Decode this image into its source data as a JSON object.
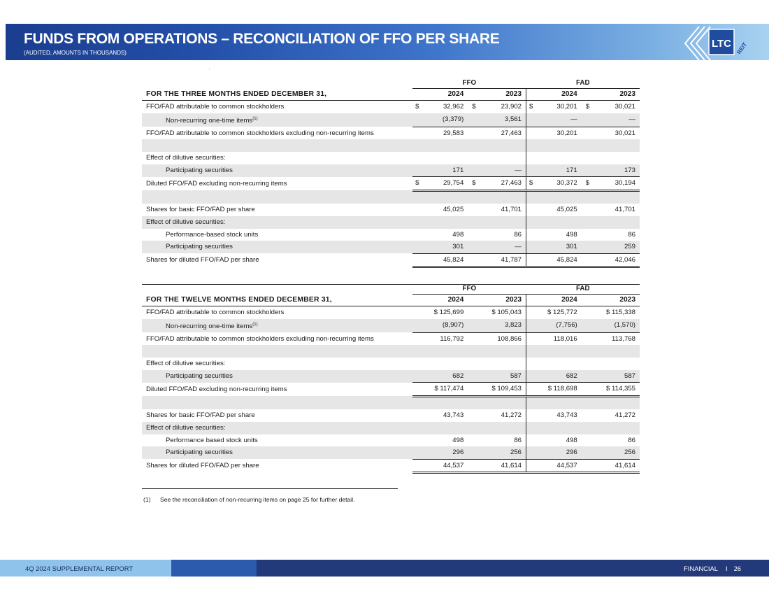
{
  "header": {
    "title": "FUNDS FROM OPERATIONS – RECONCILIATION OF FFO PER SHARE",
    "subtitle": "(AUDITED, AMOUNTS IN THOUSANDS)",
    "logo_text": "LTC",
    "logo_subtext": "REIT"
  },
  "three_months": {
    "group_ffo": "FFO",
    "group_fad": "FAD",
    "period_label": "FOR THE THREE MONTHS ENDED DECEMBER 31,",
    "years": [
      "2024",
      "2023",
      "2024",
      "2023"
    ],
    "rows": [
      {
        "label": "FFO/FAD attributable to common stockholders",
        "cur": "$",
        "v": [
          "32,962",
          "23,902",
          "30,201",
          "30,021"
        ]
      },
      {
        "label": "Non-recurring one-time items",
        "sup": "(1)",
        "v": [
          "(3,379)",
          "3,561",
          "—",
          "—"
        ]
      },
      {
        "label": "FFO/FAD attributable to common stockholders excluding non-recurring items",
        "v": [
          "29,583",
          "27,463",
          "30,201",
          "30,021"
        ]
      },
      {
        "label": "Effect of dilutive securities:"
      },
      {
        "label": "Participating securities",
        "v": [
          "171",
          "—",
          "171",
          "173"
        ]
      },
      {
        "label": "Diluted FFO/FAD excluding non-recurring items",
        "cur": "$",
        "v": [
          "29,754",
          "27,463",
          "30,372",
          "30,194"
        ]
      },
      {
        "label": "Shares for basic FFO/FAD per share",
        "v": [
          "45,025",
          "41,701",
          "45,025",
          "41,701"
        ]
      },
      {
        "label": "Effect of dilutive securities:"
      },
      {
        "label": "Performance-based stock units",
        "v": [
          "498",
          "86",
          "498",
          "86"
        ]
      },
      {
        "label": "Participating securities",
        "v": [
          "301",
          "—",
          "301",
          "259"
        ]
      },
      {
        "label": "Shares for diluted FFO/FAD per share",
        "v": [
          "45,824",
          "41,787",
          "45,824",
          "42,046"
        ]
      }
    ]
  },
  "twelve_months": {
    "group_ffo": "FFO",
    "group_fad": "FAD",
    "period_label": "FOR THE TWELVE MONTHS ENDED DECEMBER 31,",
    "years": [
      "2024",
      "2023",
      "2024",
      "2023"
    ],
    "rows": [
      {
        "label": "FFO/FAD attributable to common stockholders",
        "v": [
          "$ 125,699",
          "$ 105,043",
          "$ 125,772",
          "$ 115,338"
        ]
      },
      {
        "label": "Non-recurring one-time items",
        "sup": "(1)",
        "v": [
          "(8,907)",
          "3,823",
          "(7,756)",
          "(1,570)"
        ]
      },
      {
        "label": "FFO/FAD attributable to common stockholders excluding non-recurring items",
        "v": [
          "116,792",
          "108,866",
          "118,016",
          "113,768"
        ]
      },
      {
        "label": "Effect of dilutive securities:"
      },
      {
        "label": "Participating securities",
        "v": [
          "682",
          "587",
          "682",
          "587"
        ]
      },
      {
        "label": "Diluted FFO/FAD excluding non-recurring items",
        "v": [
          "$ 117,474",
          "$ 109,453",
          "$ 118,698",
          "$ 114,355"
        ]
      },
      {
        "label": "Shares for basic FFO/FAD per share",
        "v": [
          "43,743",
          "41,272",
          "43,743",
          "41,272"
        ]
      },
      {
        "label": "Effect of dilutive securities:"
      },
      {
        "label": "Performance based stock units",
        "v": [
          "498",
          "86",
          "498",
          "86"
        ]
      },
      {
        "label": "Participating securities",
        "v": [
          "296",
          "256",
          "296",
          "256"
        ]
      },
      {
        "label": "Shares for diluted FFO/FAD per share",
        "v": [
          "44,537",
          "41,614",
          "44,537",
          "41,614"
        ]
      }
    ]
  },
  "footnote": {
    "number": "(1)",
    "text": "See the reconciliation of non-recurring items on page 25 for further detail."
  },
  "footer": {
    "report": "4Q 2024 SUPPLEMENTAL REPORT",
    "section": "FINANCIAL",
    "divider": "I",
    "page": "26"
  },
  "colors": {
    "header_dark": "#1a3d8f",
    "header_light": "#a9d2f0",
    "footer_dark": "#223a7a",
    "footer_light": "#8fc3ec",
    "row_shade": "#e6e6e6"
  }
}
